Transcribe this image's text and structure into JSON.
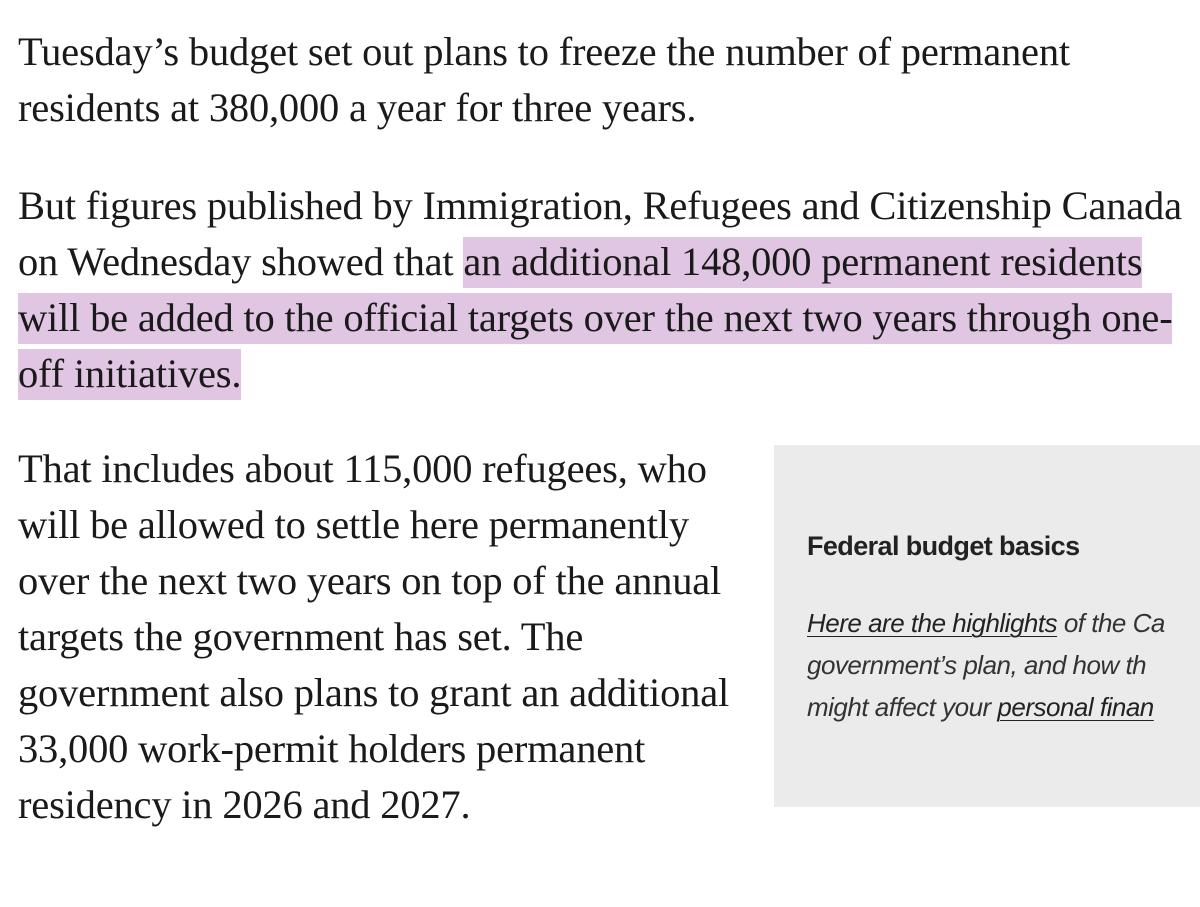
{
  "article": {
    "paragraph_1": "Tuesday’s budget set out plans to freeze the number of permanent residents at 380,000 a year for three years.",
    "paragraph_2_intro": "But figures published by Immigration, Refugees and Citizenship Canada on Wednesday showed that ",
    "paragraph_2_highlight": "an additional 148,000 permanent residents will be added to the official targets over the next two years through one-off initiatives.",
    "paragraph_3": "That includes about 115,000 refugees, who will be allowed to settle here permanently over the next two years on top of the annual targets the government has set. The government also plans to grant an additional 33,000 work-permit holders permanent residency in 2026 and 2027."
  },
  "sidebar": {
    "title": "Federal budget basics",
    "link_highlights": "Here are the highlights",
    "text_after_link": " of the Ca",
    "line_2": "government’s plan, and how th",
    "line_3_prefix": "might affect your ",
    "link_personal_finance": "personal finan"
  },
  "colors": {
    "highlight": "#e0c6e2",
    "sidebar_background": "#ebebeb",
    "text": "#1a1a1a"
  }
}
